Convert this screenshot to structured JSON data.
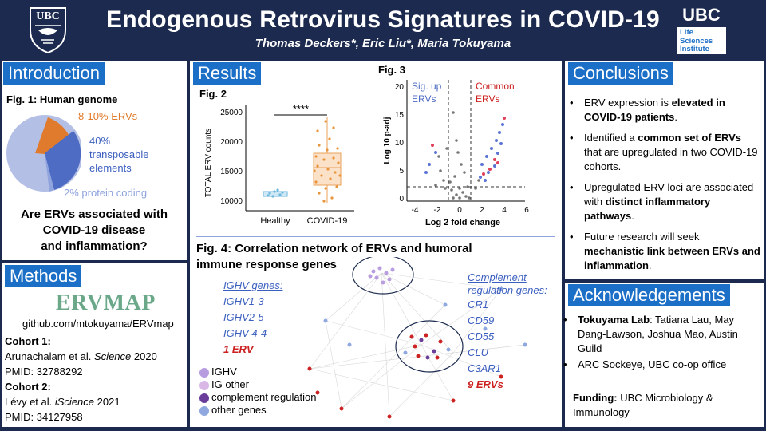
{
  "header": {
    "title": "Endogenous Retrovirus Signatures in COVID-19",
    "authors": "Thomas Deckers*, Eric Liu*, Maria Tokuyama",
    "ubc_logo_text": "UBC",
    "lsi_logo_top": "UBC",
    "lsi_logo_line1": "Life",
    "lsi_logo_line2": "Sciences",
    "lsi_logo_line3": "Institute"
  },
  "intro": {
    "heading": "Introduction",
    "fig_label": "Fig. 1: Human genome",
    "pie_labels": {
      "erv": "8-10% ERVs",
      "te_line1": "40%",
      "te_line2": "transposable",
      "te_line3": "elements",
      "protein": "2% protein coding"
    },
    "question_line1": "Are ERVs associated with",
    "question_line2": "COVID-19 disease",
    "question_line3": "and inflammation?"
  },
  "methods": {
    "heading": "Methods",
    "tool_name": "ERVMAP",
    "repo": "github.com/mtokuyama/ERVmap",
    "cohort1_label": "Cohort 1:",
    "cohort1_ref_a": "Arunachalam et al. ",
    "cohort1_ref_journal": "Science",
    "cohort1_ref_b": " 2020",
    "cohort1_pmid": "PMID: 32788292",
    "cohort2_label": "Cohort 2:",
    "cohort2_ref_a": "Lévy et al. ",
    "cohort2_ref_journal": "iScience",
    "cohort2_ref_b": " 2021",
    "cohort2_pmid": "PMID: 34127958"
  },
  "results": {
    "heading": "Results",
    "fig2": {
      "label": "Fig. 2",
      "ylabel": "TOTAL ERV counts",
      "yticks": [
        "25000",
        "20000",
        "15000",
        "10000"
      ],
      "categories": [
        "Healthy",
        "COVID-19"
      ],
      "significance": "****"
    },
    "fig3": {
      "label": "Fig. 3",
      "ylabel": "Log 10 p-adj",
      "xlabel": "Log 2 fold change",
      "yticks": [
        "20",
        "15",
        "10",
        "5",
        "0"
      ],
      "xticks": [
        "-4",
        "-2",
        "0",
        "2",
        "4",
        "6"
      ],
      "annot_up_line1": "Sig. up",
      "annot_up_line2": "ERVs",
      "annot_common_line1": "Common",
      "annot_common_line2": "ERVs"
    },
    "fig4": {
      "title_line1": "Fig. 4: Correlation network of ERVs and humoral",
      "title_line2": "immune response genes",
      "ighv_title": "IGHV genes:",
      "ighv_genes": [
        "IGHV1-3",
        "IGHV2-5",
        "IGHV 4-4"
      ],
      "ighv_ervs": "1 ERV",
      "comp_title_line1": "Complement",
      "comp_title_line2": "regulation genes:",
      "comp_genes": [
        "CR1",
        "CD59",
        "CD55",
        "CLU",
        "C3AR1"
      ],
      "comp_ervs": "9 ERVs",
      "legend": [
        "IGHV",
        "IG other",
        "complement regulation",
        "other genes"
      ],
      "legend_colors": [
        "#b89ce0",
        "#d9b8e8",
        "#6a3d9a",
        "#8fa8e0"
      ]
    }
  },
  "conclusions": {
    "heading": "Conclusions",
    "b1_a": "ERV expression is ",
    "b1_b": "elevated in COVID-19 patients",
    "b1_c": ".",
    "b2_a": "Identified a ",
    "b2_b": "common set of ERVs",
    "b2_c": " that are upregulated in two COVID-19 cohorts.",
    "b3_a": "Upregulated ERV loci are associated with ",
    "b3_b": "distinct inflammatory pathways",
    "b3_c": ".",
    "b4_a": "Future research will seek ",
    "b4_b": "mechanistic link between ERVs and inflammation",
    "b4_c": "."
  },
  "ack": {
    "heading": "Acknowledgements",
    "b1_a": "Tokuyama Lab",
    "b1_b": ": Tatiana Lau, May Dang-Lawson, Joshua Mao, Austin Guild",
    "b2": "ARC Sockeye, UBC co-op office",
    "funding_label": "Funding:",
    "funding_text": " UBC Microbiology & Immunology"
  }
}
